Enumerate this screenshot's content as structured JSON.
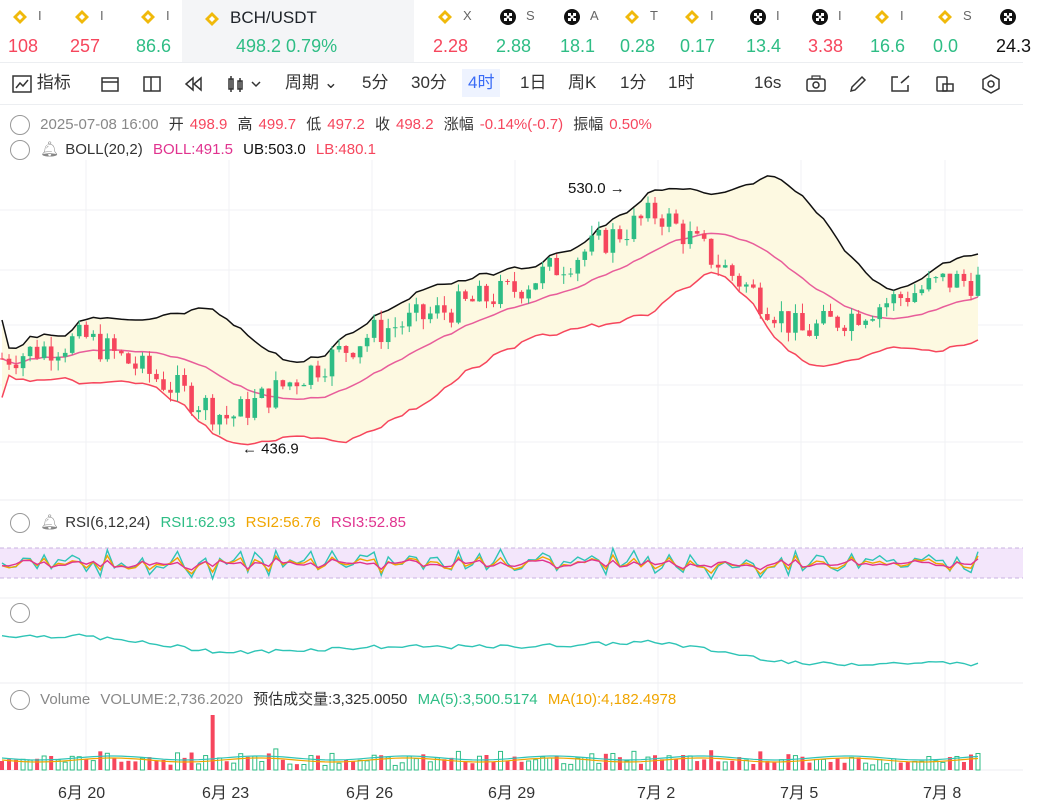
{
  "ticker": [
    {
      "sym": "I",
      "val": "108",
      "color": "down",
      "icon": "bnb-icon"
    },
    {
      "sym": "I",
      "val": "257",
      "color": "down",
      "icon": "bnb-icon"
    },
    {
      "sym": "I",
      "val": "86.6",
      "color": "up",
      "icon": "bnb-icon"
    },
    {
      "sym": "BCH/USDT",
      "val": "498.2  0.79%",
      "color": "up",
      "icon": "bnb-icon",
      "active": true
    },
    {
      "sym": "X",
      "val": "2.28",
      "color": "down",
      "icon": "bnb-icon"
    },
    {
      "sym": "S",
      "val": "2.88",
      "color": "up",
      "icon": "okx-icon"
    },
    {
      "sym": "A",
      "val": "18.1",
      "color": "up",
      "icon": "okx-icon"
    },
    {
      "sym": "T",
      "val": "0.28",
      "color": "up",
      "icon": "bnb-icon"
    },
    {
      "sym": "I",
      "val": "0.17",
      "color": "up",
      "icon": "bnb-icon"
    },
    {
      "sym": "I",
      "val": "13.4",
      "color": "up",
      "icon": "okx-icon"
    },
    {
      "sym": "I",
      "val": "3.38",
      "color": "down",
      "icon": "okx-icon"
    },
    {
      "sym": "I",
      "val": "16.6",
      "color": "up",
      "icon": "bnb-icon"
    },
    {
      "sym": "S",
      "val": "0.0",
      "color": "up",
      "icon": "bnb-icon"
    },
    {
      "sym": "",
      "val": "24.3",
      "color": "dark",
      "icon": "okx-icon"
    }
  ],
  "toolbar": {
    "indicators": "指标",
    "period": "周期",
    "intervals": [
      "5分",
      "30分",
      "4时",
      "1日",
      "周K",
      "1分",
      "1时"
    ],
    "active_interval": "4时",
    "refresh": "16s"
  },
  "ohlc": {
    "date": "2025-07-08 16:00",
    "open_label": "开",
    "open": "498.9",
    "high_label": "高",
    "high": "499.7",
    "low_label": "低",
    "low": "497.2",
    "close_label": "收",
    "close": "498.2",
    "change_label": "涨幅",
    "change": "-0.14%(-0.7)",
    "amp_label": "振幅",
    "amp": "0.50%"
  },
  "boll": {
    "name": "BOLL(20,2)",
    "mid": "BOLL:491.5",
    "ub": "UB:503.0",
    "lb": "LB:480.1"
  },
  "rsi": {
    "name": "RSI(6,12,24)",
    "r1": "RSI1:62.93",
    "r2": "RSI2:56.76",
    "r3": "RSI3:52.85"
  },
  "volume": {
    "name": "Volume",
    "vol": "VOLUME:2,736.2020",
    "est": "预估成交量:3,325.0050",
    "ma5": "MA(5):3,500.5174",
    "ma10": "MA(10):4,182.4978"
  },
  "markers": {
    "high": "530.0",
    "low": "436.9"
  },
  "x_labels": [
    "6月 20",
    "6月 23",
    "6月 26",
    "6月 29",
    "7月 2",
    "7月 5",
    "7月 8"
  ],
  "colors": {
    "up": "#2ebd85",
    "down": "#f6465d",
    "ub_lb_mid": "#e85d9a",
    "band_fill": "#fdf9e1",
    "rsi_band": "#f3e6fb",
    "rsi1": "#2ec4b6",
    "rsi2": "#f0a500",
    "rsi3": "#e0338f",
    "macd": "#2ec4b6"
  },
  "chart_data": {
    "type": "candlestick",
    "y_range": [
      425,
      545
    ],
    "anchor_points": [
      {
        "x": "6月 20",
        "close": 476
      },
      {
        "x": "6月 23",
        "close": 445
      },
      {
        "x": "6月 26",
        "close": 478
      },
      {
        "x": "6月 29",
        "close": 495
      },
      {
        "x": "7月 2",
        "close": 525
      },
      {
        "x": "7月 5",
        "close": 478
      },
      {
        "x": "7月 8",
        "close": 498.2
      }
    ]
  }
}
